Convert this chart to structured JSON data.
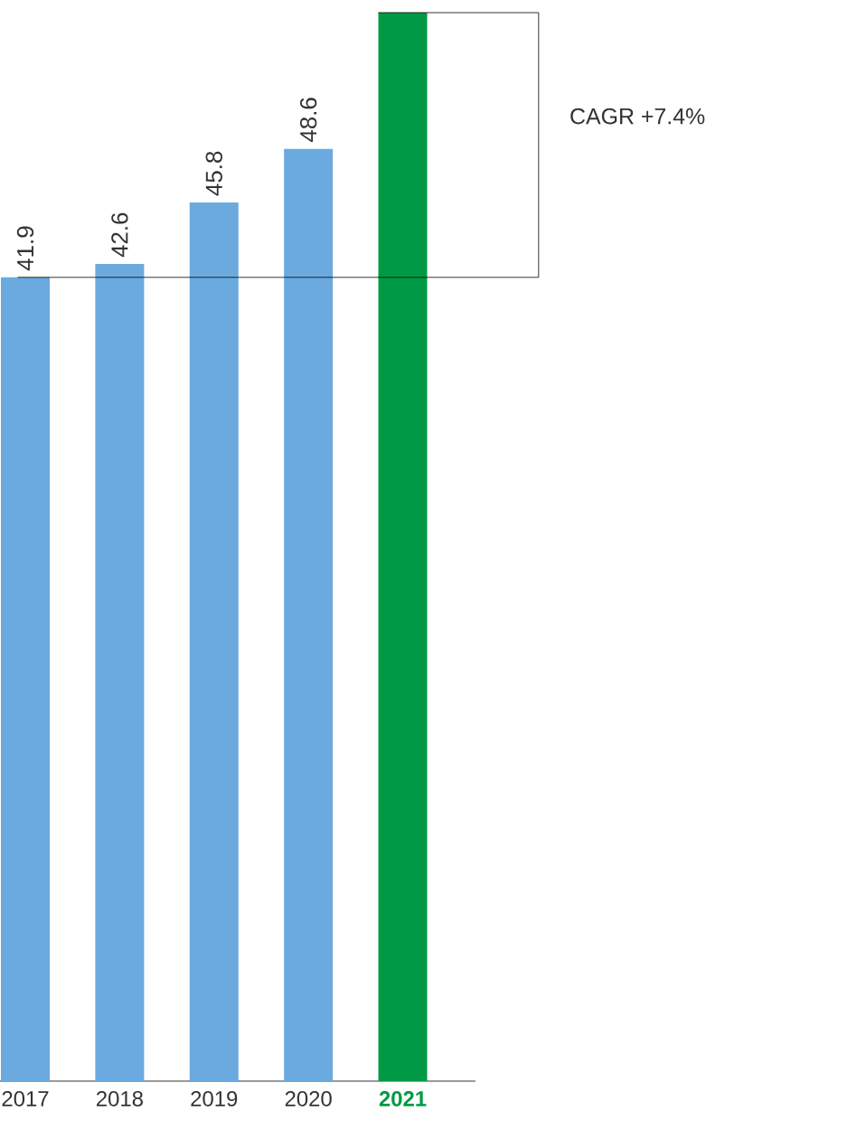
{
  "chart_data": {
    "type": "bar",
    "categories": [
      "2017",
      "2018",
      "2019",
      "2020",
      "2021"
    ],
    "values": [
      41.9,
      42.6,
      45.8,
      48.6,
      55.7
    ],
    "colors": [
      "#6aaadf",
      "#6aaadf",
      "#6aaadf",
      "#6aaadf",
      "#009a44"
    ],
    "value_labels": [
      "41.9",
      "42.6",
      "45.8",
      "48.6",
      null
    ],
    "annotations": [
      "CAGR +7.4%"
    ]
  }
}
